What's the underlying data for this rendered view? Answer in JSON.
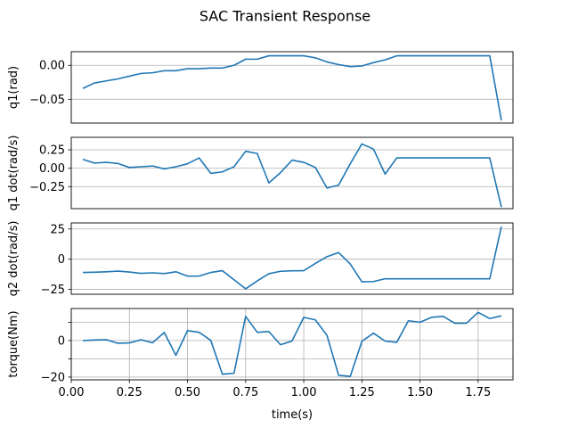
{
  "chart_data": {
    "type": "line",
    "title": "SAC Transient Response",
    "xlabel": "time(s)",
    "xlim": [
      0.0,
      1.9
    ],
    "x_ticks": [
      0.0,
      0.25,
      0.5,
      0.75,
      1.0,
      1.25,
      1.5,
      1.75
    ],
    "x_tick_labels": [
      "0.00",
      "0.25",
      "0.50",
      "0.75",
      "1.00",
      "1.25",
      "1.50",
      "1.75"
    ],
    "line_color": "#1f77b4",
    "grid": true,
    "x": [
      0.05,
      0.1,
      0.15,
      0.2,
      0.25,
      0.3,
      0.35,
      0.4,
      0.45,
      0.5,
      0.55,
      0.6,
      0.65,
      0.7,
      0.75,
      0.8,
      0.85,
      0.9,
      0.95,
      1.0,
      1.05,
      1.1,
      1.15,
      1.2,
      1.25,
      1.3,
      1.35,
      1.4,
      1.45,
      1.5,
      1.55,
      1.6,
      1.65,
      1.7,
      1.75,
      1.8,
      1.85
    ],
    "panels": [
      {
        "ylabel": "q1(rad)",
        "ylim": [
          -0.085,
          0.02
        ],
        "y_ticks": [
          0.0,
          -0.05
        ],
        "y_tick_labels": [
          "0.00",
          "−0.05"
        ],
        "grid_x": false,
        "show_x_ticks": false,
        "values": [
          -0.034,
          -0.026,
          -0.023,
          -0.02,
          -0.016,
          -0.012,
          -0.011,
          -0.008,
          -0.008,
          -0.005,
          -0.005,
          -0.004,
          -0.004,
          0.0,
          0.009,
          0.009,
          0.014,
          0.014,
          0.014,
          0.014,
          0.011,
          0.005,
          0.001,
          -0.002,
          -0.001,
          0.004,
          0.008,
          0.014,
          0.014,
          0.014,
          0.014,
          0.014,
          0.014,
          0.014,
          0.014,
          0.014,
          -0.081
        ]
      },
      {
        "ylabel": "q1 dot(rad/s)",
        "ylim": [
          -0.55,
          0.42
        ],
        "y_ticks": [
          0.25,
          0.0,
          -0.25
        ],
        "y_tick_labels": [
          "0.25",
          "0.00",
          "−0.25"
        ],
        "grid_x": false,
        "show_x_ticks": false,
        "values": [
          0.12,
          0.07,
          0.08,
          0.065,
          0.01,
          0.02,
          0.03,
          -0.01,
          0.02,
          0.06,
          0.14,
          -0.07,
          -0.05,
          0.02,
          0.23,
          0.2,
          -0.2,
          -0.06,
          0.11,
          0.08,
          0.01,
          -0.27,
          -0.23,
          0.06,
          0.33,
          0.26,
          -0.08,
          0.14,
          0.14,
          0.14,
          0.14,
          0.14,
          0.14,
          0.14,
          0.14,
          0.14,
          -0.53
        ]
      },
      {
        "ylabel": "q2 dot(rad/s)",
        "ylim": [
          -29,
          30
        ],
        "y_ticks": [
          25,
          0,
          -25
        ],
        "y_tick_labels": [
          "25",
          "0",
          "−25"
        ],
        "grid_x": false,
        "show_x_ticks": false,
        "values": [
          -11.0,
          -10.8,
          -10.4,
          -9.9,
          -10.6,
          -11.7,
          -11.3,
          -11.9,
          -10.4,
          -14.0,
          -13.9,
          -11.0,
          -9.5,
          -17.0,
          -24.5,
          -18.0,
          -12.0,
          -10.0,
          -9.6,
          -9.5,
          -3.5,
          2.1,
          5.5,
          -4.0,
          -18.7,
          -18.5,
          -16.2,
          -16.2,
          -16.2,
          -16.2,
          -16.2,
          -16.2,
          -16.2,
          -16.2,
          -16.2,
          -16.2,
          27.0
        ]
      },
      {
        "ylabel": "torque(Nm)",
        "ylim": [
          -21.5,
          17.5
        ],
        "y_ticks": [
          10,
          0,
          -10,
          -20
        ],
        "y_tick_labels": [
          "",
          "0",
          "",
          "−20"
        ],
        "grid_x": true,
        "show_x_ticks": true,
        "values": [
          0.0,
          0.3,
          0.5,
          -1.5,
          -1.3,
          0.4,
          -1.2,
          4.4,
          -8.1,
          5.4,
          4.5,
          0.1,
          -18.4,
          -17.9,
          13.2,
          4.5,
          4.9,
          -2.3,
          -0.2,
          12.7,
          11.3,
          2.8,
          -19.0,
          -19.6,
          -0.4,
          4.0,
          -0.3,
          -1.0,
          10.8,
          10.0,
          12.7,
          13.2,
          9.4,
          9.5,
          15.4,
          12.0,
          13.5
        ]
      }
    ]
  }
}
